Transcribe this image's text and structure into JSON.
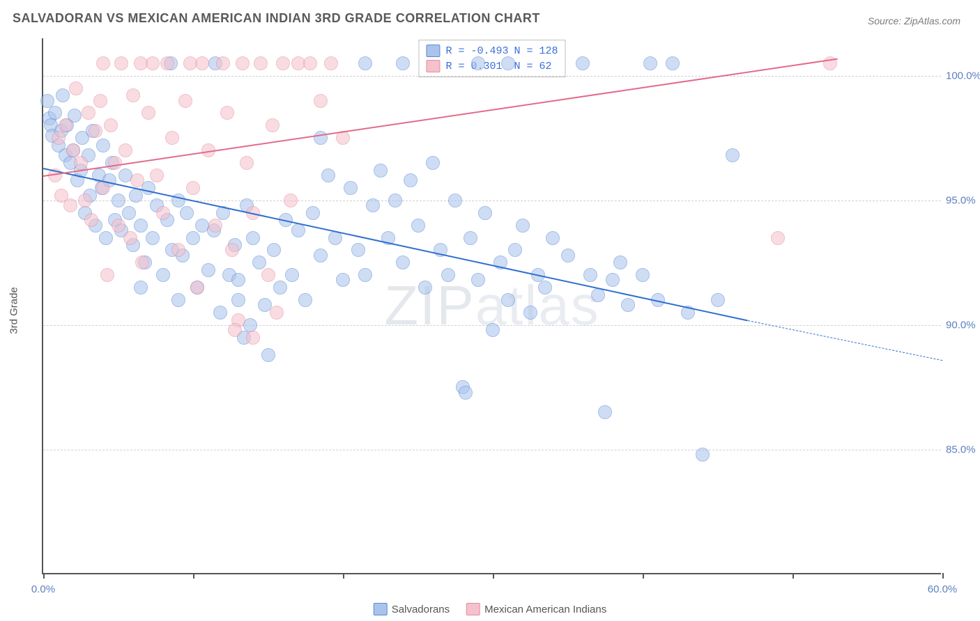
{
  "title": "SALVADORAN VS MEXICAN AMERICAN INDIAN 3RD GRADE CORRELATION CHART",
  "source": {
    "prefix": "Source: ",
    "name": "ZipAtlas.com"
  },
  "watermark": {
    "part1": "ZIP",
    "part2": "atlas"
  },
  "chart": {
    "type": "scatter",
    "ylabel": "3rd Grade",
    "xlim": [
      0,
      60
    ],
    "ylim": [
      80,
      101.5
    ],
    "xtick_positions": [
      0,
      10,
      20,
      30,
      40,
      50,
      60
    ],
    "xtick_labels": [
      "0.0%",
      "",
      "",
      "",
      "",
      "",
      "60.0%"
    ],
    "ytick_positions": [
      85,
      90,
      95,
      100
    ],
    "ytick_labels": [
      "85.0%",
      "90.0%",
      "95.0%",
      "100.0%"
    ],
    "grid_color": "#d0d0d0",
    "background": "#ffffff",
    "marker_radius": 9,
    "marker_opacity": 0.55,
    "series": [
      {
        "label": "Salvadorans",
        "color_fill": "#a9c3ec",
        "color_stroke": "#5b8ad6",
        "r": "-0.493",
        "n": "128",
        "trend": {
          "x1": 0,
          "y1": 96.3,
          "x2": 47,
          "y2": 90.2,
          "dash_x2": 60,
          "dash_y2": 88.6,
          "color": "#2f6fd0",
          "width": 2.5
        },
        "points": [
          [
            0.3,
            99.0
          ],
          [
            0.4,
            98.3
          ],
          [
            0.5,
            98.0
          ],
          [
            0.6,
            97.6
          ],
          [
            0.8,
            98.5
          ],
          [
            1.0,
            97.2
          ],
          [
            1.2,
            97.8
          ],
          [
            1.3,
            99.2
          ],
          [
            1.5,
            96.8
          ],
          [
            1.6,
            98.0
          ],
          [
            1.8,
            96.5
          ],
          [
            2.0,
            97.0
          ],
          [
            2.1,
            98.4
          ],
          [
            2.3,
            95.8
          ],
          [
            2.5,
            96.2
          ],
          [
            2.6,
            97.5
          ],
          [
            2.8,
            94.5
          ],
          [
            3.0,
            96.8
          ],
          [
            3.1,
            95.2
          ],
          [
            3.3,
            97.8
          ],
          [
            3.5,
            94.0
          ],
          [
            3.7,
            96.0
          ],
          [
            3.9,
            95.5
          ],
          [
            4.0,
            97.2
          ],
          [
            4.2,
            93.5
          ],
          [
            4.4,
            95.8
          ],
          [
            4.6,
            96.5
          ],
          [
            4.8,
            94.2
          ],
          [
            5.0,
            95.0
          ],
          [
            5.2,
            93.8
          ],
          [
            5.5,
            96.0
          ],
          [
            5.7,
            94.5
          ],
          [
            6.0,
            93.2
          ],
          [
            6.2,
            95.2
          ],
          [
            6.5,
            94.0
          ],
          [
            6.8,
            92.5
          ],
          [
            7.0,
            95.5
          ],
          [
            7.3,
            93.5
          ],
          [
            7.6,
            94.8
          ],
          [
            8.0,
            92.0
          ],
          [
            8.3,
            94.2
          ],
          [
            8.6,
            93.0
          ],
          [
            9.0,
            95.0
          ],
          [
            9.3,
            92.8
          ],
          [
            9.6,
            94.5
          ],
          [
            10.0,
            93.5
          ],
          [
            10.3,
            91.5
          ],
          [
            10.6,
            94.0
          ],
          [
            11.0,
            92.2
          ],
          [
            11.4,
            93.8
          ],
          [
            11.8,
            90.5
          ],
          [
            12.0,
            94.5
          ],
          [
            12.4,
            92.0
          ],
          [
            12.8,
            93.2
          ],
          [
            13.0,
            91.0
          ],
          [
            13.4,
            89.5
          ],
          [
            13.6,
            94.8
          ],
          [
            13.8,
            90.0
          ],
          [
            14.0,
            93.5
          ],
          [
            14.4,
            92.5
          ],
          [
            14.8,
            90.8
          ],
          [
            15.0,
            88.8
          ],
          [
            15.4,
            93.0
          ],
          [
            15.8,
            91.5
          ],
          [
            16.2,
            94.2
          ],
          [
            16.6,
            92.0
          ],
          [
            17.0,
            93.8
          ],
          [
            17.5,
            91.0
          ],
          [
            18.0,
            94.5
          ],
          [
            18.5,
            92.8
          ],
          [
            19.0,
            96.0
          ],
          [
            19.5,
            93.5
          ],
          [
            20.0,
            91.8
          ],
          [
            20.5,
            95.5
          ],
          [
            21.0,
            93.0
          ],
          [
            21.5,
            92.0
          ],
          [
            22.0,
            94.8
          ],
          [
            22.5,
            96.2
          ],
          [
            23.0,
            93.5
          ],
          [
            23.5,
            95.0
          ],
          [
            24.0,
            92.5
          ],
          [
            24.5,
            95.8
          ],
          [
            25.0,
            94.0
          ],
          [
            25.5,
            91.5
          ],
          [
            26.0,
            96.5
          ],
          [
            26.5,
            93.0
          ],
          [
            27.0,
            92.0
          ],
          [
            27.5,
            95.0
          ],
          [
            28.0,
            87.5
          ],
          [
            28.2,
            87.3
          ],
          [
            28.5,
            93.5
          ],
          [
            29.0,
            91.8
          ],
          [
            29.5,
            94.5
          ],
          [
            30.0,
            89.8
          ],
          [
            30.5,
            92.5
          ],
          [
            31.0,
            91.0
          ],
          [
            31.5,
            93.0
          ],
          [
            32.0,
            94.0
          ],
          [
            32.5,
            90.5
          ],
          [
            33.0,
            92.0
          ],
          [
            33.5,
            91.5
          ],
          [
            34.0,
            93.5
          ],
          [
            35.0,
            92.8
          ],
          [
            36.0,
            100.5
          ],
          [
            36.5,
            92.0
          ],
          [
            37.0,
            91.2
          ],
          [
            37.5,
            86.5
          ],
          [
            38.0,
            91.8
          ],
          [
            38.5,
            92.5
          ],
          [
            39.0,
            90.8
          ],
          [
            40.0,
            92.0
          ],
          [
            41.0,
            91.0
          ],
          [
            42.0,
            100.5
          ],
          [
            43.0,
            90.5
          ],
          [
            44.0,
            84.8
          ],
          [
            45.0,
            91.0
          ],
          [
            40.5,
            100.5
          ],
          [
            46.0,
            96.8
          ],
          [
            29.0,
            100.5
          ],
          [
            31.0,
            100.5
          ],
          [
            8.5,
            100.5
          ],
          [
            11.5,
            100.5
          ],
          [
            18.5,
            97.5
          ],
          [
            21.5,
            100.5
          ],
          [
            24.0,
            100.5
          ],
          [
            6.5,
            91.5
          ],
          [
            9.0,
            91.0
          ],
          [
            13.0,
            91.8
          ]
        ]
      },
      {
        "label": "Mexican American Indians",
        "color_fill": "#f4c1cc",
        "color_stroke": "#e98aa0",
        "r": "0.301",
        "n": "62",
        "trend": {
          "x1": 0,
          "y1": 96.0,
          "x2": 53,
          "y2": 100.7,
          "color": "#e26b8a",
          "width": 2.5
        },
        "points": [
          [
            0.8,
            96.0
          ],
          [
            1.0,
            97.5
          ],
          [
            1.2,
            95.2
          ],
          [
            1.5,
            98.0
          ],
          [
            1.8,
            94.8
          ],
          [
            2.0,
            97.0
          ],
          [
            2.2,
            99.5
          ],
          [
            2.5,
            96.5
          ],
          [
            2.8,
            95.0
          ],
          [
            3.0,
            98.5
          ],
          [
            3.2,
            94.2
          ],
          [
            3.5,
            97.8
          ],
          [
            3.8,
            99.0
          ],
          [
            4.0,
            95.5
          ],
          [
            4.3,
            92.0
          ],
          [
            4.5,
            98.0
          ],
          [
            4.8,
            96.5
          ],
          [
            5.0,
            94.0
          ],
          [
            5.2,
            100.5
          ],
          [
            5.5,
            97.0
          ],
          [
            5.8,
            93.5
          ],
          [
            6.0,
            99.2
          ],
          [
            6.3,
            95.8
          ],
          [
            6.6,
            92.5
          ],
          [
            7.0,
            98.5
          ],
          [
            7.3,
            100.5
          ],
          [
            7.6,
            96.0
          ],
          [
            8.0,
            94.5
          ],
          [
            8.3,
            100.5
          ],
          [
            8.6,
            97.5
          ],
          [
            9.0,
            93.0
          ],
          [
            9.5,
            99.0
          ],
          [
            10.0,
            95.5
          ],
          [
            10.3,
            91.5
          ],
          [
            10.6,
            100.5
          ],
          [
            11.0,
            97.0
          ],
          [
            11.5,
            94.0
          ],
          [
            12.0,
            100.5
          ],
          [
            12.3,
            98.5
          ],
          [
            12.6,
            93.0
          ],
          [
            13.0,
            90.2
          ],
          [
            13.3,
            100.5
          ],
          [
            13.6,
            96.5
          ],
          [
            14.0,
            94.5
          ],
          [
            14.5,
            100.5
          ],
          [
            15.0,
            92.0
          ],
          [
            15.3,
            98.0
          ],
          [
            15.6,
            90.5
          ],
          [
            16.0,
            100.5
          ],
          [
            16.5,
            95.0
          ],
          [
            17.0,
            100.5
          ],
          [
            17.8,
            100.5
          ],
          [
            18.5,
            99.0
          ],
          [
            19.2,
            100.5
          ],
          [
            20.0,
            97.5
          ],
          [
            12.8,
            89.8
          ],
          [
            14.0,
            89.5
          ],
          [
            49.0,
            93.5
          ],
          [
            52.5,
            100.5
          ],
          [
            4.0,
            100.5
          ],
          [
            6.5,
            100.5
          ],
          [
            9.8,
            100.5
          ]
        ]
      }
    ]
  }
}
